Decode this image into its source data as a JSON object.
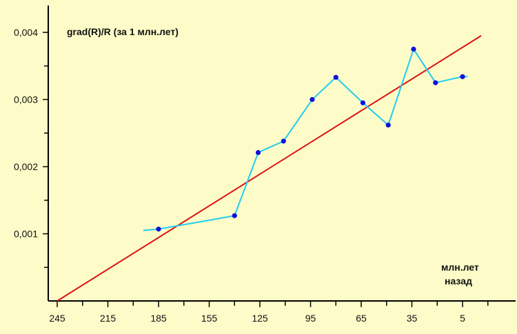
{
  "chart_data": {
    "type": "line",
    "title": "grad(R)/R   (за 1 млн.лет)",
    "xlabel_line1": "млн.лет",
    "xlabel_line2": "назад",
    "x_reversed": true,
    "xlim": [
      245,
      -15
    ],
    "ylim": [
      0,
      0.004
    ],
    "x_ticks": [
      245,
      215,
      185,
      155,
      125,
      95,
      65,
      35,
      5
    ],
    "x_tick_labels": [
      "245",
      "215",
      "185",
      "155",
      "125",
      "95",
      "65",
      "35",
      "5"
    ],
    "y_ticks": [
      0.001,
      0.002,
      0.003,
      0.004
    ],
    "y_tick_labels": [
      "0,001",
      "0,002",
      "0,003",
      "0,004"
    ],
    "grid": false,
    "series": [
      {
        "kind": "data",
        "color": "#22ccee",
        "line_start": [
          194,
          0.00105
        ],
        "line_end": [
          2,
          0.00334
        ],
        "points": [
          {
            "x": 185,
            "y": 0.00107
          },
          {
            "x": 140,
            "y": 0.00127
          },
          {
            "x": 126,
            "y": 0.00221
          },
          {
            "x": 111,
            "y": 0.00238
          },
          {
            "x": 94,
            "y": 0.003
          },
          {
            "x": 80,
            "y": 0.00333
          },
          {
            "x": 64,
            "y": 0.00295
          },
          {
            "x": 49,
            "y": 0.00262
          },
          {
            "x": 34,
            "y": 0.00375
          },
          {
            "x": 21,
            "y": 0.00325
          },
          {
            "x": 5,
            "y": 0.00334
          }
        ]
      },
      {
        "kind": "trend",
        "color": "#dd1111",
        "from": [
          245,
          0.0
        ],
        "to": [
          -6,
          0.00395
        ]
      }
    ],
    "colors": {
      "background": "#fdfcc8",
      "axis": "#000000",
      "marker": "#1010dd"
    }
  }
}
